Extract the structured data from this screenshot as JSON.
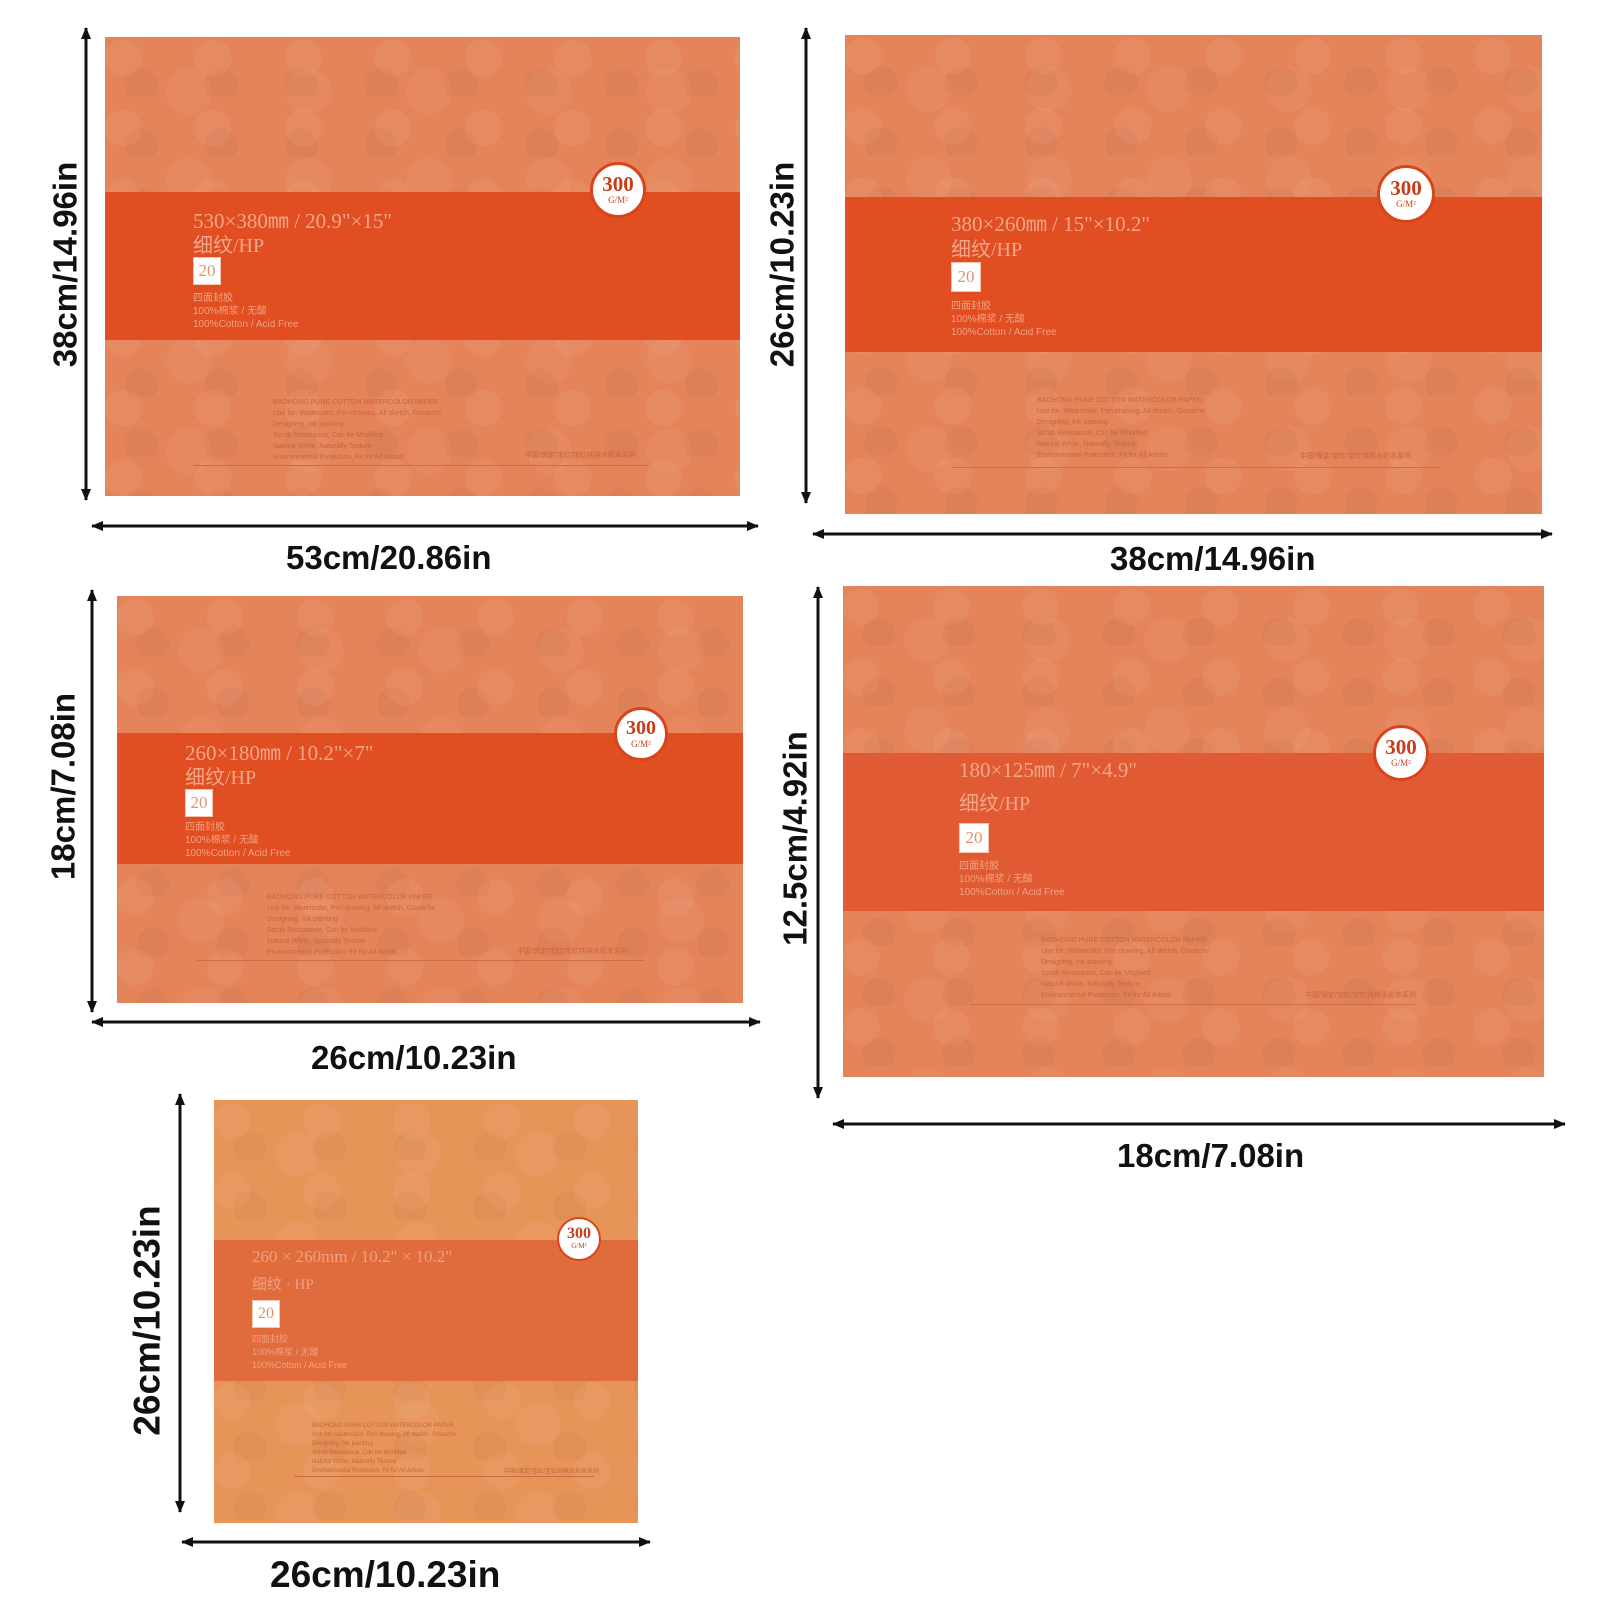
{
  "colors": {
    "cover": "#e5845a",
    "band": "#e04e22",
    "badge_ring": "#d8451b",
    "arrow": "#111111"
  },
  "pads": [
    {
      "id": "pad-530x380",
      "size_text": "530×380㎜ / 20.9\"×15\"",
      "texture": "细纹/HP",
      "sheets": "20",
      "lines": [
        "四面封胶",
        "100%棉浆 / 无酸",
        "100%Cotton / Acid Free"
      ],
      "badge": {
        "value": "300",
        "unit": "G/M²"
      },
      "width_label": "53cm/20.86in",
      "height_label": "38cm/14.96in"
    },
    {
      "id": "pad-380x260",
      "size_text": "380×260㎜ / 15\"×10.2\"",
      "texture": "细纹/HP",
      "sheets": "20",
      "lines": [
        "四面封胶",
        "100%棉浆 / 无酸",
        "100%Cotton / Acid Free"
      ],
      "badge": {
        "value": "300",
        "unit": "G/M²"
      },
      "width_label": "38cm/14.96in",
      "height_label": "26cm/10.23in"
    },
    {
      "id": "pad-260x180",
      "size_text": "260×180㎜ / 10.2\"×7\"",
      "texture": "细纹/HP",
      "sheets": "20",
      "lines": [
        "四面封胶",
        "100%棉浆 / 无酸",
        "100%Cotton / Acid Free"
      ],
      "badge": {
        "value": "300",
        "unit": "G/M²"
      },
      "width_label": "26cm/10.23in",
      "height_label": "18cm/7.08in"
    },
    {
      "id": "pad-180x125",
      "size_text": "180×125㎜ / 7\"×4.9\"",
      "texture": "细纹/HP",
      "sheets": "20",
      "lines": [
        "四面封胶",
        "100%棉浆 / 无酸",
        "100%Cotton / Acid Free"
      ],
      "badge": {
        "value": "300",
        "unit": "G/M²"
      },
      "width_label": "18cm/7.08in",
      "height_label": "12.5cm/4.92in"
    },
    {
      "id": "pad-260x260",
      "size_text": "260 × 260mm / 10.2\" × 10.2\"",
      "texture": "细纹 · HP",
      "sheets": "20",
      "lines": [
        "四面封胶",
        "100%棉浆 / 无酸",
        "100%Cotton / Acid Free"
      ],
      "badge": {
        "value": "300",
        "unit": "G/M²"
      },
      "width_label": "26cm/10.23in",
      "height_label": "26cm/10.23in"
    }
  ],
  "fine_print": {
    "heading": "BAOHONG PURE COTTON WATERCOLOR PAPER",
    "lines": [
      "Use for: Watercolor, Pen drawing, All sketch, Gouache",
      "Designing, Ink painting",
      "Scrub Resistance, Can be Modified",
      "Natural White, Naturally Texture",
      "Environmental Protection, Fit for All Artists"
    ],
    "brand": "中国/保定/宝虹/宝虹纯棉水彩本系列"
  }
}
